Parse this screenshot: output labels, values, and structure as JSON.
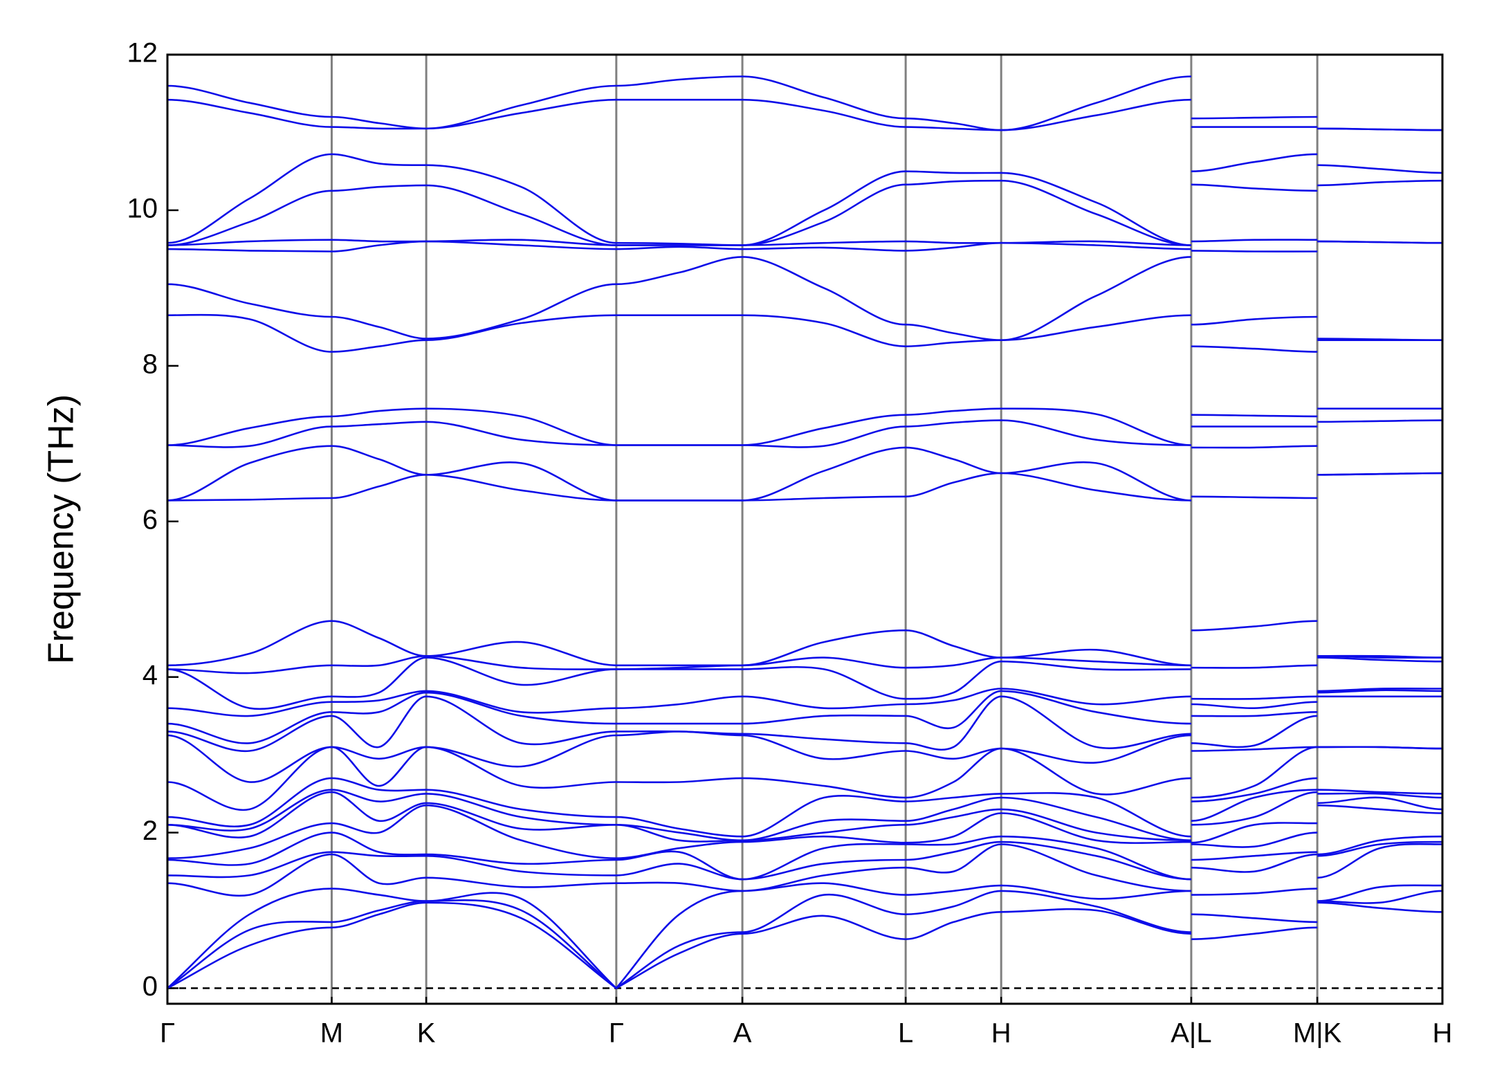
{
  "chart_data": {
    "type": "line",
    "ylabel": "Frequency (THz)",
    "color": "#0d0de8",
    "xgrid": true,
    "zero_line": 0,
    "xlim": [
      0,
      13.35
    ],
    "ylim": [
      -0.2,
      12
    ],
    "yticks": [
      0,
      2,
      4,
      6,
      8,
      10,
      12
    ],
    "xticks": [
      {
        "value": 0,
        "label": "Γ"
      },
      {
        "value": 1.72,
        "label": "M"
      },
      {
        "value": 2.71,
        "label": "K"
      },
      {
        "value": 4.7,
        "label": "Γ"
      },
      {
        "value": 6.02,
        "label": "A"
      },
      {
        "value": 7.73,
        "label": "L"
      },
      {
        "value": 8.73,
        "label": "H"
      },
      {
        "value": 10.72,
        "label": "A|L"
      },
      {
        "value": 12.04,
        "label": "M|K"
      },
      {
        "value": 13.35,
        "label": "H"
      }
    ],
    "x": [
      0,
      0.86,
      1.72,
      2.215,
      2.71,
      3.705,
      4.7,
      5.36,
      6.02,
      6.875,
      7.73,
      8.23,
      8.73,
      9.725,
      10.72,
      10.72,
      10.72,
      11.38,
      12.04,
      12.04,
      12.04,
      12.695,
      13.35
    ],
    "series": [
      {
        "values": [
          0,
          0.55,
          0.78,
          0.95,
          1.1,
          0.9,
          0,
          0.45,
          0.7,
          0.93,
          0.63,
          0.85,
          0.98,
          1.0,
          0.7,
          null,
          0.63,
          0.7,
          0.78,
          null,
          1.1,
          1.03,
          0.98
        ]
      },
      {
        "values": [
          0,
          0.75,
          0.85,
          1.0,
          1.12,
          1.0,
          0,
          0.55,
          0.72,
          1.2,
          0.95,
          1.05,
          1.25,
          1.05,
          0.72,
          null,
          0.95,
          0.9,
          0.85,
          null,
          1.12,
          1.1,
          1.25
        ]
      },
      {
        "values": [
          0,
          0.95,
          1.28,
          1.2,
          1.12,
          1.15,
          0,
          0.95,
          1.25,
          1.35,
          1.2,
          1.25,
          1.32,
          1.15,
          1.25,
          null,
          1.2,
          1.22,
          1.28,
          null,
          1.12,
          1.3,
          1.32
        ]
      },
      {
        "values": [
          1.35,
          1.2,
          1.72,
          1.35,
          1.42,
          1.3,
          1.35,
          1.35,
          1.25,
          1.45,
          1.55,
          1.5,
          1.85,
          1.45,
          1.25,
          null,
          1.55,
          1.5,
          1.72,
          null,
          1.42,
          1.8,
          1.85
        ]
      },
      {
        "values": [
          1.45,
          1.45,
          1.75,
          1.7,
          1.7,
          1.5,
          1.45,
          1.6,
          1.4,
          1.6,
          1.65,
          1.75,
          1.88,
          1.7,
          1.4,
          null,
          1.65,
          1.7,
          1.75,
          null,
          1.7,
          1.85,
          1.88
        ]
      },
      {
        "values": [
          1.65,
          1.6,
          2.0,
          1.75,
          1.72,
          1.6,
          1.65,
          1.75,
          1.4,
          1.8,
          1.85,
          1.85,
          1.95,
          1.8,
          1.4,
          null,
          1.85,
          1.82,
          2.0,
          null,
          1.72,
          1.9,
          1.95
        ]
      },
      {
        "values": [
          1.67,
          1.8,
          2.12,
          2.0,
          2.35,
          1.9,
          1.67,
          1.8,
          1.88,
          1.95,
          1.87,
          1.95,
          2.25,
          1.9,
          1.88,
          null,
          1.87,
          2.1,
          2.12,
          null,
          2.35,
          2.3,
          2.25
        ]
      },
      {
        "values": [
          2.1,
          1.95,
          2.52,
          2.15,
          2.38,
          2.05,
          2.1,
          1.9,
          1.9,
          2.0,
          2.1,
          2.2,
          2.3,
          2.0,
          1.9,
          null,
          2.1,
          2.2,
          2.52,
          null,
          2.38,
          2.45,
          2.3
        ]
      },
      {
        "values": [
          2.1,
          2.05,
          2.55,
          2.4,
          2.5,
          2.2,
          2.1,
          2.0,
          1.9,
          2.15,
          2.15,
          2.3,
          2.45,
          2.2,
          1.9,
          null,
          2.15,
          2.45,
          2.55,
          null,
          2.5,
          2.5,
          2.45
        ]
      },
      {
        "values": [
          2.2,
          2.1,
          2.7,
          2.55,
          2.55,
          2.3,
          2.2,
          2.05,
          1.95,
          2.45,
          2.4,
          2.45,
          2.5,
          2.45,
          1.95,
          null,
          2.4,
          2.5,
          2.7,
          null,
          2.55,
          2.52,
          2.5
        ]
      },
      {
        "values": [
          2.65,
          2.3,
          3.1,
          2.6,
          3.1,
          2.6,
          2.65,
          2.65,
          2.7,
          2.6,
          2.45,
          2.65,
          3.08,
          2.5,
          2.7,
          null,
          2.45,
          2.6,
          3.1,
          null,
          3.1,
          3.1,
          3.08
        ]
      },
      {
        "values": [
          3.25,
          2.65,
          3.1,
          2.95,
          3.1,
          2.85,
          3.25,
          3.3,
          3.25,
          2.95,
          3.05,
          2.95,
          3.08,
          2.9,
          3.25,
          null,
          3.05,
          3.07,
          3.1,
          null,
          3.1,
          3.1,
          3.08
        ]
      },
      {
        "values": [
          3.3,
          3.05,
          3.5,
          3.1,
          3.75,
          3.15,
          3.3,
          3.3,
          3.27,
          3.2,
          3.15,
          3.1,
          3.75,
          3.1,
          3.27,
          null,
          3.15,
          3.12,
          3.5,
          null,
          3.75,
          3.75,
          3.75
        ]
      },
      {
        "values": [
          3.4,
          3.15,
          3.55,
          3.55,
          3.8,
          3.5,
          3.4,
          3.4,
          3.4,
          3.5,
          3.5,
          3.35,
          3.82,
          3.55,
          3.4,
          null,
          3.5,
          3.5,
          3.55,
          null,
          3.8,
          3.83,
          3.82
        ]
      },
      {
        "values": [
          3.6,
          3.5,
          3.68,
          3.7,
          3.82,
          3.55,
          3.6,
          3.65,
          3.75,
          3.6,
          3.65,
          3.7,
          3.85,
          3.65,
          3.75,
          null,
          3.65,
          3.6,
          3.68,
          null,
          3.82,
          3.85,
          3.85
        ]
      },
      {
        "values": [
          4.1,
          3.6,
          3.75,
          3.8,
          4.25,
          3.9,
          4.1,
          4.1,
          4.1,
          4.1,
          3.72,
          3.8,
          4.2,
          4.1,
          4.1,
          null,
          3.72,
          3.72,
          3.75,
          null,
          4.25,
          4.22,
          4.2
        ]
      },
      {
        "values": [
          4.1,
          4.05,
          4.15,
          4.15,
          4.27,
          4.12,
          4.1,
          4.12,
          4.15,
          4.25,
          4.12,
          4.15,
          4.25,
          4.2,
          4.15,
          null,
          4.12,
          4.12,
          4.15,
          null,
          4.27,
          4.25,
          4.25
        ]
      },
      {
        "values": [
          4.15,
          4.3,
          4.72,
          4.5,
          4.27,
          4.45,
          4.15,
          4.15,
          4.15,
          4.45,
          4.6,
          4.4,
          4.25,
          4.35,
          4.15,
          null,
          4.6,
          4.65,
          4.72,
          null,
          4.27,
          4.27,
          4.25
        ]
      },
      {
        "values": [
          6.27,
          6.28,
          6.3,
          6.45,
          6.6,
          6.4,
          6.27,
          6.27,
          6.27,
          6.3,
          6.32,
          6.5,
          6.62,
          6.4,
          6.27,
          null,
          6.32,
          6.31,
          6.3,
          null,
          6.6,
          6.61,
          6.62
        ]
      },
      {
        "values": [
          6.27,
          6.75,
          6.97,
          6.8,
          6.6,
          6.75,
          6.27,
          6.27,
          6.27,
          6.65,
          6.95,
          6.8,
          6.62,
          6.75,
          6.27,
          null,
          6.95,
          6.95,
          6.97,
          null,
          6.6,
          6.61,
          6.62
        ]
      },
      {
        "values": [
          6.98,
          6.97,
          7.22,
          7.25,
          7.28,
          7.05,
          6.98,
          6.98,
          6.98,
          6.97,
          7.22,
          7.27,
          7.3,
          7.05,
          6.98,
          null,
          7.22,
          7.22,
          7.22,
          null,
          7.28,
          7.29,
          7.3
        ]
      },
      {
        "values": [
          6.98,
          7.2,
          7.35,
          7.42,
          7.45,
          7.35,
          6.98,
          6.98,
          6.98,
          7.2,
          7.37,
          7.42,
          7.45,
          7.38,
          6.98,
          null,
          7.37,
          7.36,
          7.35,
          null,
          7.45,
          7.45,
          7.45
        ]
      },
      {
        "values": [
          8.65,
          8.6,
          8.18,
          8.25,
          8.33,
          8.55,
          8.65,
          8.65,
          8.65,
          8.55,
          8.25,
          8.3,
          8.33,
          8.5,
          8.65,
          null,
          8.25,
          8.22,
          8.18,
          null,
          8.33,
          8.33,
          8.33
        ]
      },
      {
        "values": [
          9.05,
          8.8,
          8.63,
          8.5,
          8.35,
          8.6,
          9.05,
          9.2,
          9.4,
          9.0,
          8.53,
          8.42,
          8.33,
          8.9,
          9.4,
          null,
          8.53,
          8.6,
          8.63,
          null,
          8.35,
          8.34,
          8.33
        ]
      },
      {
        "values": [
          9.5,
          9.48,
          9.47,
          9.55,
          9.6,
          9.55,
          9.5,
          9.53,
          9.5,
          9.52,
          9.48,
          9.52,
          9.58,
          9.55,
          9.5,
          null,
          9.48,
          9.47,
          9.47,
          null,
          9.6,
          9.59,
          9.58
        ]
      },
      {
        "values": [
          9.55,
          9.6,
          9.62,
          9.6,
          9.6,
          9.62,
          9.55,
          9.55,
          9.55,
          9.58,
          9.6,
          9.58,
          9.58,
          9.6,
          9.55,
          null,
          9.6,
          9.62,
          9.62,
          null,
          9.6,
          9.59,
          9.58
        ]
      },
      {
        "values": [
          9.55,
          9.85,
          10.25,
          10.3,
          10.32,
          9.95,
          9.55,
          9.55,
          9.55,
          9.85,
          10.33,
          10.37,
          10.38,
          9.95,
          9.55,
          null,
          10.33,
          10.28,
          10.25,
          null,
          10.32,
          10.36,
          10.38
        ]
      },
      {
        "values": [
          9.58,
          10.15,
          10.72,
          10.6,
          10.58,
          10.3,
          9.58,
          9.57,
          9.55,
          10.0,
          10.5,
          10.48,
          10.48,
          10.1,
          9.55,
          null,
          10.5,
          10.62,
          10.72,
          null,
          10.58,
          10.53,
          10.48
        ]
      },
      {
        "values": [
          11.42,
          11.25,
          11.07,
          11.05,
          11.05,
          11.25,
          11.42,
          11.42,
          11.42,
          11.28,
          11.07,
          11.05,
          11.03,
          11.22,
          11.42,
          null,
          11.07,
          11.07,
          11.07,
          null,
          11.05,
          11.04,
          11.03
        ]
      },
      {
        "values": [
          11.6,
          11.38,
          11.2,
          11.12,
          11.05,
          11.35,
          11.6,
          11.68,
          11.72,
          11.45,
          11.18,
          11.12,
          11.03,
          11.38,
          11.72,
          null,
          11.18,
          11.19,
          11.2,
          null,
          11.05,
          11.04,
          11.03
        ]
      }
    ]
  }
}
